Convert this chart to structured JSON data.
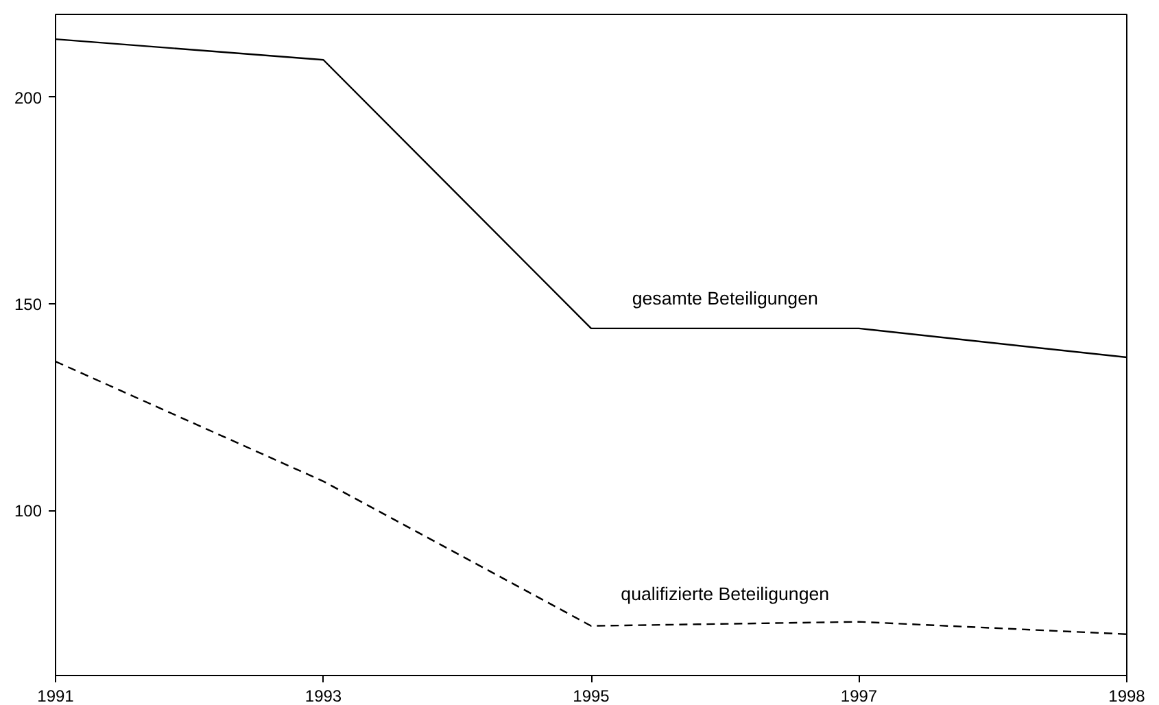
{
  "chart_data": {
    "type": "line",
    "categories": [
      "1991",
      "1993",
      "1995",
      "1997",
      "1998"
    ],
    "ylim": [
      60,
      220
    ],
    "yticks": [
      100,
      150,
      200
    ],
    "grid": false,
    "legend": false,
    "series": [
      {
        "name": "gesamte Beteiligungen",
        "color": "#000000",
        "line_style": "solid",
        "values": [
          214,
          209,
          144,
          144,
          137
        ]
      },
      {
        "name": "qualifizierte Beteiligungen",
        "color": "#000000",
        "line_style": "dashed",
        "values": [
          136,
          107,
          72,
          73,
          70
        ]
      }
    ]
  }
}
